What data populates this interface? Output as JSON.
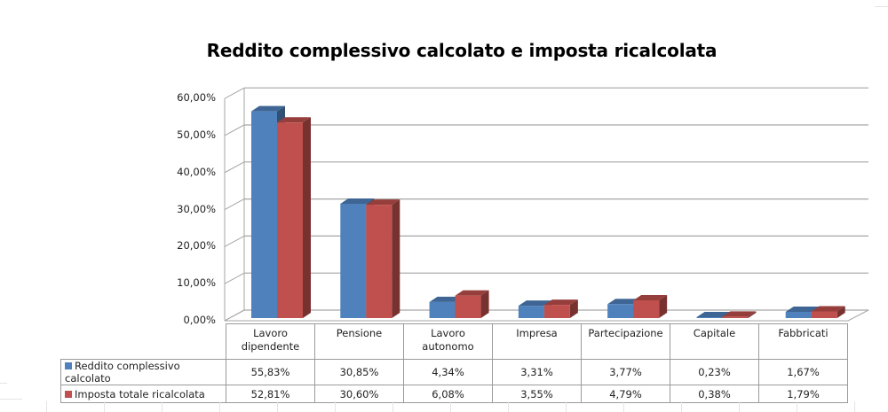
{
  "chart_data": {
    "type": "bar",
    "style": "3d-clustered-column",
    "title": "Reddito complessivo calcolato e imposta ricalcolata",
    "xlabel": "",
    "ylabel": "",
    "ylim": [
      0,
      60
    ],
    "y_unit": "%",
    "y_ticks": [
      "0,00%",
      "10,00%",
      "20,00%",
      "30,00%",
      "40,00%",
      "50,00%",
      "60,00%"
    ],
    "grid": true,
    "legend_position": "data-table",
    "categories": [
      "Lavoro dipendente",
      "Pensione",
      "Lavoro autonomo",
      "Impresa",
      "Partecipazione",
      "Capitale",
      "Fabbricati"
    ],
    "series": [
      {
        "name": "Reddito complessivo calcolato",
        "color": "#4F81BD",
        "values": [
          55.83,
          30.85,
          4.34,
          3.31,
          3.77,
          0.23,
          1.67
        ],
        "labels": [
          "55,83%",
          "30,85%",
          "4,34%",
          "3,31%",
          "3,77%",
          "0,23%",
          "1,67%"
        ]
      },
      {
        "name": "Imposta totale ricalcolata",
        "color": "#C0504D",
        "values": [
          52.81,
          30.6,
          6.08,
          3.55,
          4.79,
          0.38,
          1.79
        ],
        "labels": [
          "52,81%",
          "30,60%",
          "6,08%",
          "3,55%",
          "4,79%",
          "0,38%",
          "1,79%"
        ]
      }
    ]
  },
  "table": {
    "header_lines": [
      [
        "Lavoro",
        "dipendente"
      ],
      [
        "Pensione",
        ""
      ],
      [
        "Lavoro",
        "autonomo"
      ],
      [
        "Impresa",
        ""
      ],
      [
        "Partecipazione",
        ""
      ],
      [
        "Capitale",
        ""
      ],
      [
        "Fabbricati",
        ""
      ]
    ]
  }
}
